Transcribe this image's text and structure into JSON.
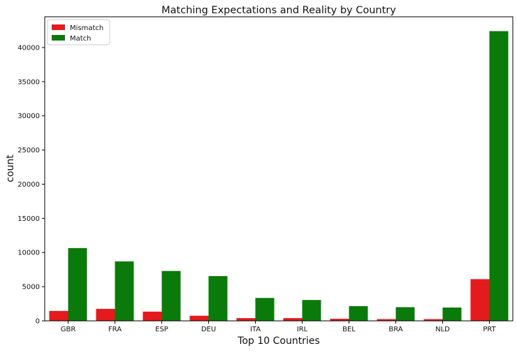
{
  "chart_data": {
    "type": "bar",
    "title": "Matching Expectations and Reality by Country",
    "xlabel": "Top 10 Countries",
    "ylabel": "count",
    "categories": [
      "GBR",
      "FRA",
      "ESP",
      "DEU",
      "ITA",
      "IRL",
      "BEL",
      "BRA",
      "NLD",
      "PRT"
    ],
    "series": [
      {
        "name": "Mismatch",
        "color": "#e41a1c",
        "values": [
          1450,
          1750,
          1350,
          750,
          400,
          400,
          300,
          250,
          250,
          6100
        ]
      },
      {
        "name": "Match",
        "color": "#0a7a0a",
        "values": [
          10650,
          8700,
          7300,
          6550,
          3350,
          3050,
          2150,
          2000,
          1950,
          42400
        ]
      }
    ],
    "ylim": [
      0,
      44500
    ],
    "yticks": [
      0,
      5000,
      10000,
      15000,
      20000,
      25000,
      30000,
      35000,
      40000
    ],
    "grid": false,
    "legend_position": "top-left"
  }
}
